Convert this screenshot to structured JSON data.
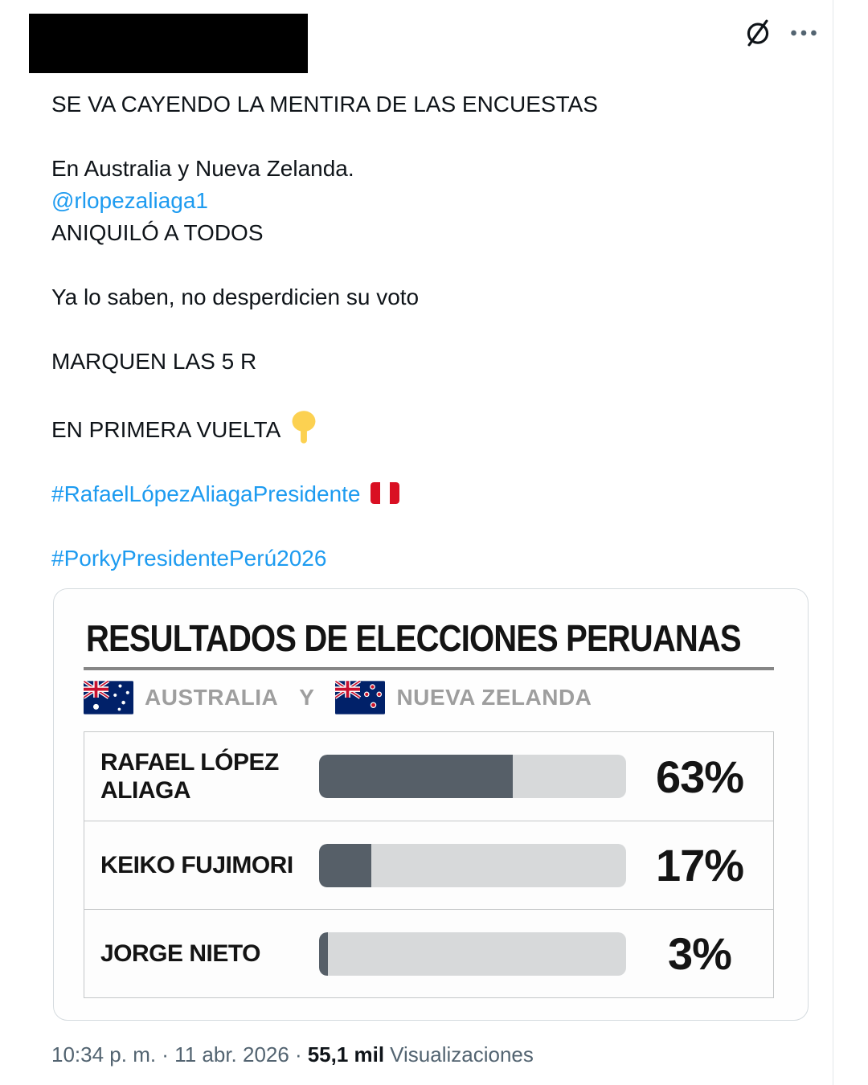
{
  "header": {
    "redacted_user": true,
    "grok_icon": "grok-logo",
    "more_icon": "ellipsis"
  },
  "tweet": {
    "p1": "SE VA CAYENDO LA MENTIRA DE LAS ENCUESTAS",
    "p2_line1": "En Australia y Nueva Zelanda.",
    "p2_mention": "@rlopezaliaga1",
    "p2_line2": "ANIQUILÓ A TODOS",
    "p3": "Ya lo saben, no desperdicien su voto",
    "p4": "MARQUEN LAS 5 R",
    "p5": "EN PRIMERA VUELTA",
    "p5_emoji": "backhand-index-pointing-down",
    "hashtag1": "#RafaelLópezAliagaPresidente",
    "hashtag1_emoji": "flag-peru",
    "hashtag2": "#PorkyPresidentePerú2026"
  },
  "card": {
    "title": "RESULTADOS DE ELECCIONES PERUANAS",
    "subtitle": {
      "flag1": "flag-australia",
      "country1": "AUSTRALIA",
      "conjunction": "Y",
      "flag2": "flag-new-zealand",
      "country2": "NUEVA ZELANDA"
    },
    "chart_data": {
      "type": "bar",
      "orientation": "horizontal",
      "title": "RESULTADOS DE ELECCIONES PERUANAS",
      "subtitle": "AUSTRALIA Y NUEVA ZELANDA",
      "categories": [
        "RAFAEL LÓPEZ ALIAGA",
        "KEIKO FUJIMORI",
        "JORGE NIETO"
      ],
      "values": [
        63,
        17,
        3
      ],
      "labels": [
        "63%",
        "17%",
        "3%"
      ],
      "xlim": [
        0,
        100
      ],
      "bar_fill_color": "#565f68",
      "bar_track_color": "#d7d9da"
    }
  },
  "footer": {
    "meta": "10:34 p. m. · 11 abr. 2026 ·",
    "views_count": "55,1 mil",
    "views_label": "Visualizaciones"
  },
  "colors": {
    "text": "#0f1419",
    "muted": "#536471",
    "link_blue": "#1d9bf0",
    "bar_fill": "#565f68",
    "bar_track": "#d7d9da",
    "card_border": "#d5dbdf",
    "table_border": "#c4c7c8",
    "subtitle_gray": "#9e9e9e"
  }
}
